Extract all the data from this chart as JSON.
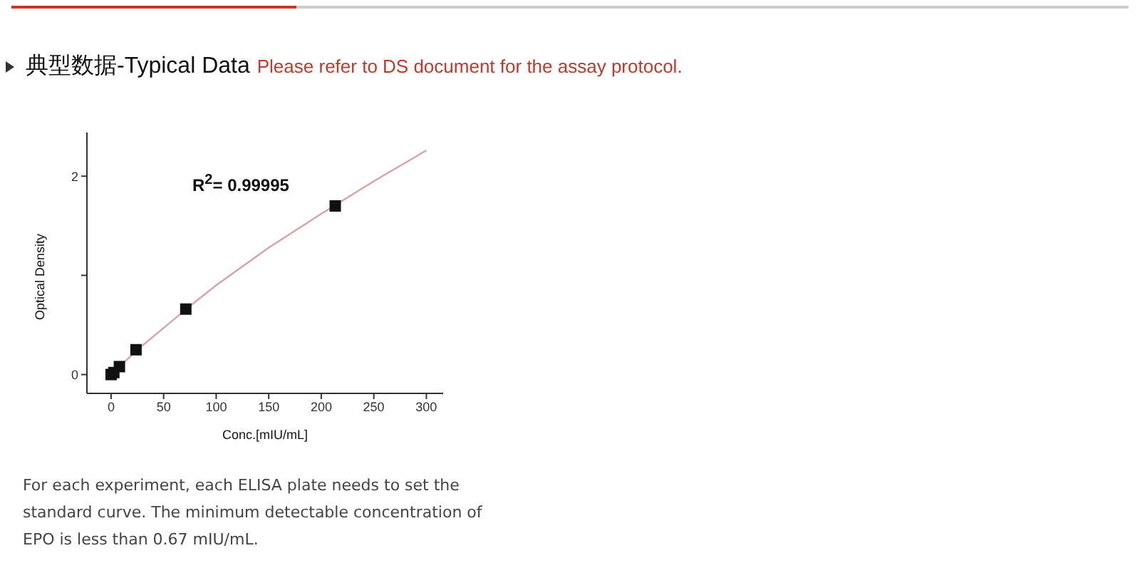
{
  "chart_data": {
    "type": "scatter",
    "title": "典型数据-Typical Data",
    "subtitle": "Please refer to DS document for the assay protocol.",
    "xlabel": "Conc.[mIU/mL]",
    "ylabel": "Optical Density",
    "series": [
      {
        "color": "#111111",
        "marker": "square",
        "x": [
          0,
          2.6,
          7.9,
          23.7,
          71.1,
          213.3
        ],
        "values": [
          0,
          0.02,
          0.08,
          0.25,
          0.66,
          1.7
        ]
      },
      {
        "type": "line",
        "color": "#d9a3a3",
        "marker": "none",
        "line_style": "solid",
        "x": [
          0,
          25,
          50,
          75,
          100,
          150,
          200,
          250,
          300
        ],
        "values": [
          0,
          0.25,
          0.47,
          0.69,
          0.9,
          1.28,
          1.62,
          1.95,
          2.26
        ]
      }
    ],
    "xlim": [
      -23,
      316
    ],
    "xticks": [
      0,
      50,
      100,
      150,
      200,
      250,
      300
    ],
    "ylim": [
      -0.19,
      2.44
    ],
    "yticks": [
      0,
      {
        "value": 1,
        "label": null
      },
      2
    ],
    "grid": false,
    "annotations": [
      "R$^{2}$= 0.99995",
      "For each experiment, each ELISA plate needs to set the standard curve. The minimum detectable concentration of EPO is less than 0.67 mIU/mL."
    ]
  }
}
